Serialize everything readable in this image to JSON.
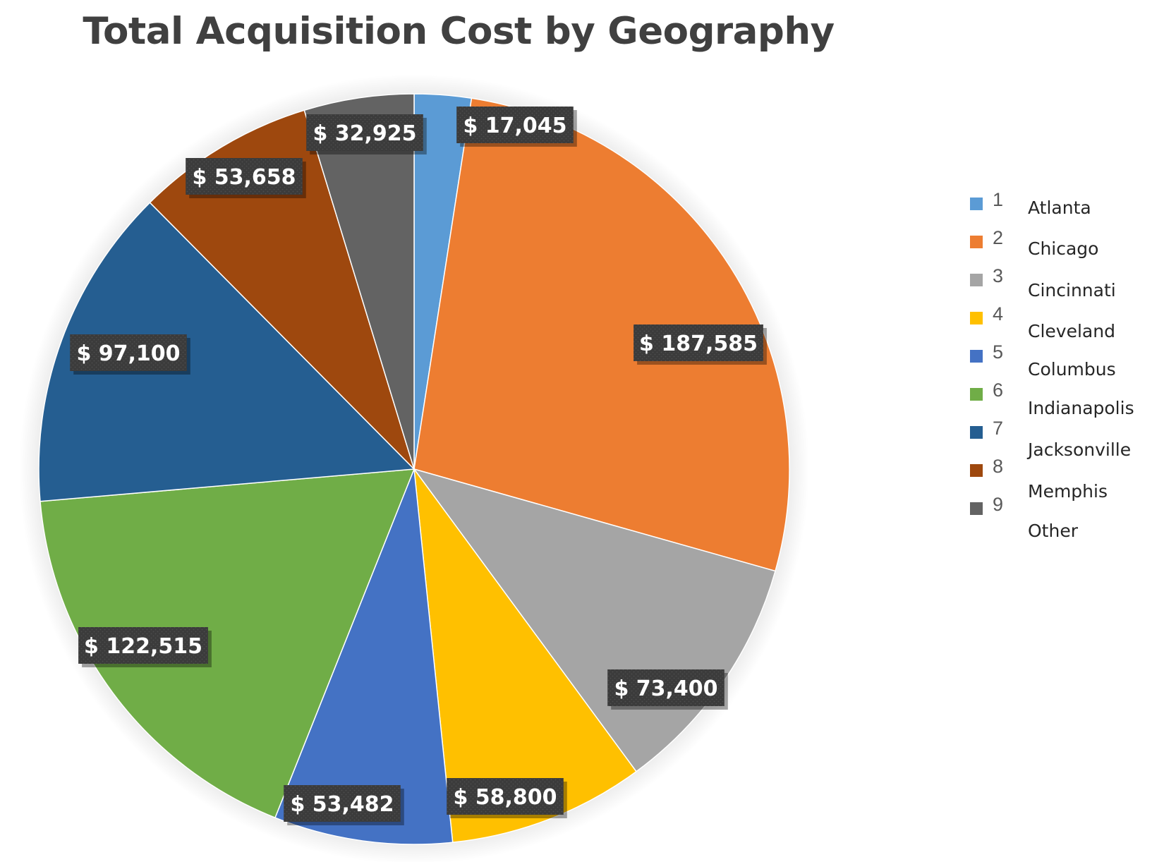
{
  "chart_data": {
    "type": "pie",
    "title": "Total Acquisition Cost by Geography",
    "slices": [
      {
        "legend_num": "1",
        "name": "Atlanta",
        "value": 17045,
        "label": "$ 17,045",
        "color": "#5B9BD5"
      },
      {
        "legend_num": "2",
        "name": "Chicago",
        "value": 187585,
        "label": "$ 187,585",
        "color": "#ED7D31"
      },
      {
        "legend_num": "3",
        "name": "Cincinnati",
        "value": 73400,
        "label": "$ 73,400",
        "color": "#A5A5A5"
      },
      {
        "legend_num": "4",
        "name": "Cleveland",
        "value": 58800,
        "label": "$ 58,800",
        "color": "#FFC000"
      },
      {
        "legend_num": "5",
        "name": "Columbus",
        "value": 53482,
        "label": "$ 53,482",
        "color": "#4472C4"
      },
      {
        "legend_num": "6",
        "name": "Indianapolis",
        "value": 122515,
        "label": "$ 122,515",
        "color": "#70AD47"
      },
      {
        "legend_num": "7",
        "name": "Jacksonville",
        "value": 97100,
        "label": "$ 97,100",
        "color": "#255E91"
      },
      {
        "legend_num": "8",
        "name": "Memphis",
        "value": 53658,
        "label": "$ 53,658",
        "color": "#9E480E"
      },
      {
        "legend_num": "9",
        "name": "Other",
        "value": 32925,
        "label": "$ 32,925",
        "color": "#636363"
      }
    ],
    "legend_position": "right",
    "label_style": {
      "background": "#3F3F3F",
      "text_color": "#FFFFFF"
    }
  }
}
